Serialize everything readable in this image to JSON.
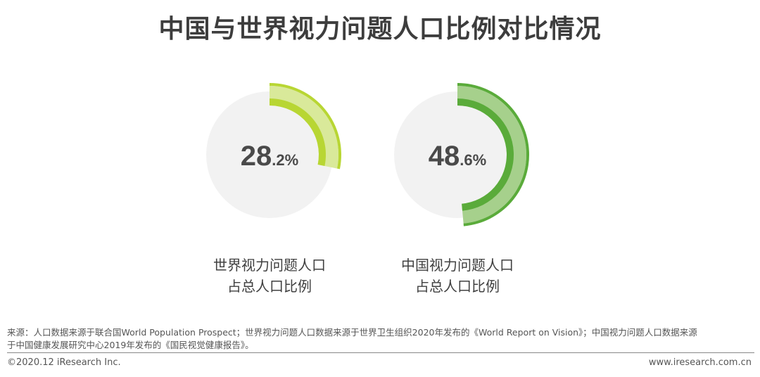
{
  "title": "中国与世界视力问题人口比例对比情况",
  "chart_data": [
    {
      "type": "pie",
      "name": "世界视力问题人口占总人口比例",
      "value_percent": 28.2,
      "label_int": "28",
      "label_dec": ".2%",
      "caption_lines": [
        "世界视力问题人口",
        "占总人口比例"
      ],
      "color": "#b8d633",
      "color_light": "#d9e99a"
    },
    {
      "type": "pie",
      "name": "中国视力问题人口占总人口比例",
      "value_percent": 48.6,
      "label_int": "48",
      "label_dec": ".6%",
      "caption_lines": [
        "中国视力问题人口",
        "占总人口比例"
      ],
      "color": "#5aab3a",
      "color_light": "#a6d08c"
    }
  ],
  "footer": {
    "source_line1": "来源：人口数据来源于联合国World Population Prospect；世界视力问题人口数据来源于世界卫生组织2020年发布的《World Report on Vision》；中国视力问题人口数据来源",
    "source_line2": "于中国健康发展研究中心2019年发布的《国民视觉健康报告》。",
    "copyright": "©2020.12 iResearch Inc.",
    "website": "www.iresearch.com.cn"
  },
  "colors": {
    "disc": "#f2f2f2",
    "title": "#3d3d3d"
  }
}
